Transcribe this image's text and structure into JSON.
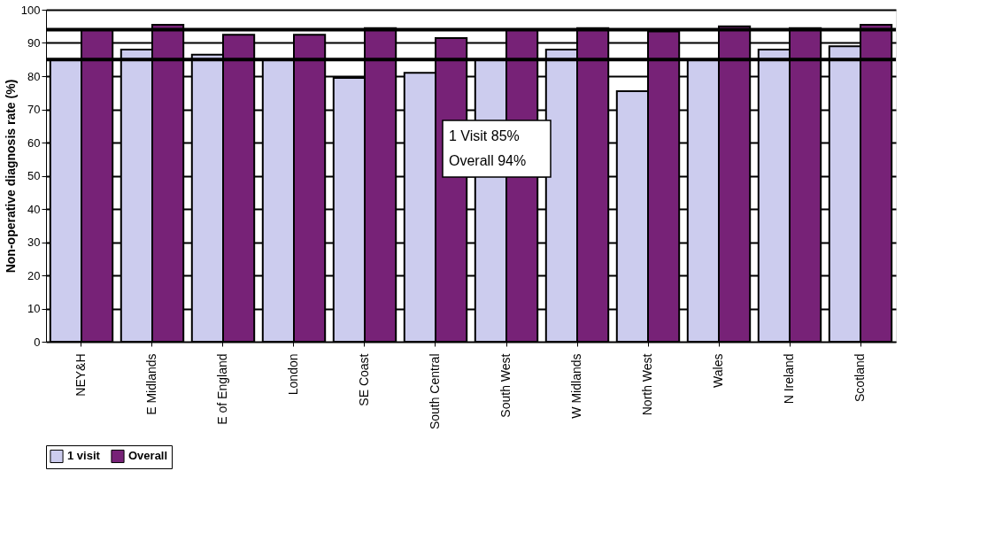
{
  "chart_data": {
    "type": "bar",
    "ylabel": "Non-operative diagnosis rate (%)",
    "categories": [
      "NEY&H",
      "E Midlands",
      "E of England",
      "London",
      "SE Coast",
      "South Central",
      "South West",
      "W Midlands",
      "North West",
      "Wales",
      "N Ireland",
      "Scotland"
    ],
    "series": [
      {
        "name": "1 visit",
        "color": "#ccccee",
        "values": [
          85,
          88,
          86.5,
          85,
          79.5,
          81,
          85,
          88,
          75.5,
          85,
          88,
          89
        ]
      },
      {
        "name": "Overall",
        "color": "#772277",
        "values": [
          94,
          95.5,
          92.5,
          92.5,
          94.5,
          91.5,
          94,
          94.5,
          93.5,
          95,
          94.5,
          95.5
        ]
      }
    ],
    "ylim": [
      0,
      100
    ],
    "yticks": [
      0,
      10,
      20,
      30,
      40,
      50,
      60,
      70,
      80,
      90,
      100
    ],
    "ref_lines": [
      {
        "axis": "y",
        "value": 85,
        "color": "#000000"
      },
      {
        "axis": "y",
        "value": 94,
        "color": "#000000"
      }
    ],
    "annotations": [
      "1 Visit 85%",
      "Overall 94%"
    ],
    "grid": "y",
    "legend": "bottom"
  }
}
